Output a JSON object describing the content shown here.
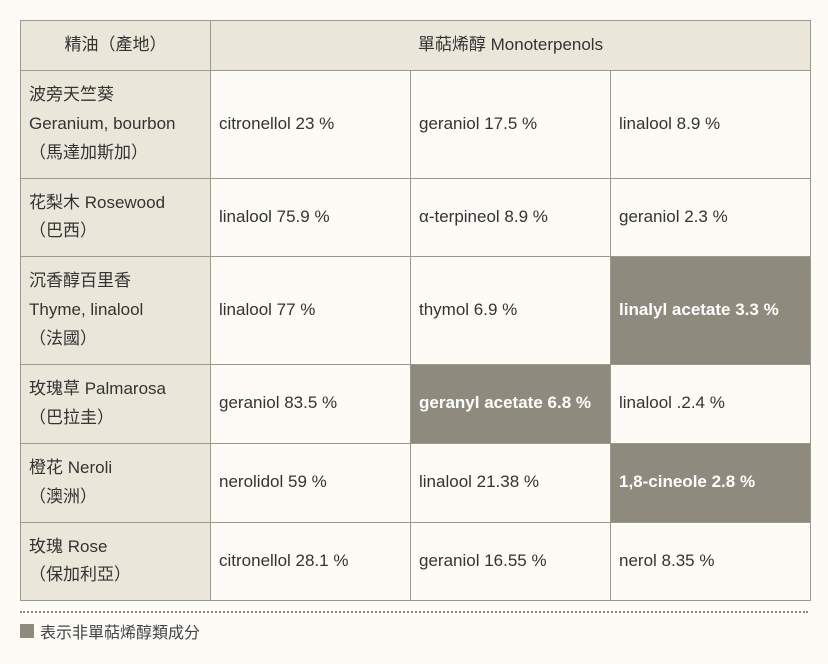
{
  "header": {
    "left": "精油（產地）",
    "main": "單萜烯醇 Monoterpenols"
  },
  "rows": [
    {
      "name": "波旁天竺葵\nGeranium, bourbon\n（馬達加斯加）",
      "c1": {
        "text": "citronellol 23 %",
        "dark": false
      },
      "c2": {
        "text": "geraniol 17.5 %",
        "dark": false
      },
      "c3": {
        "text": "linalool 8.9 %",
        "dark": false
      }
    },
    {
      "name": "花梨木 Rosewood\n（巴西）",
      "c1": {
        "text": "linalool 75.9 %",
        "dark": false
      },
      "c2": {
        "text": "α-terpineol 8.9 %",
        "dark": false
      },
      "c3": {
        "text": "geraniol 2.3 %",
        "dark": false
      }
    },
    {
      "name": "沉香醇百里香\nThyme, linalool\n（法國）",
      "c1": {
        "text": "linalool 77 %",
        "dark": false
      },
      "c2": {
        "text": "thymol 6.9 %",
        "dark": false
      },
      "c3": {
        "text": "linalyl acetate 3.3 %",
        "dark": true
      }
    },
    {
      "name": "玫瑰草 Palmarosa\n（巴拉圭）",
      "c1": {
        "text": "geraniol 83.5 %",
        "dark": false
      },
      "c2": {
        "text": "geranyl acetate 6.8 %",
        "dark": true
      },
      "c3": {
        "text": "linalool .2.4 %",
        "dark": false
      }
    },
    {
      "name": "橙花 Neroli\n（澳洲）",
      "c1": {
        "text": "nerolidol 59 %",
        "dark": false
      },
      "c2": {
        "text": "linalool 21.38 %",
        "dark": false
      },
      "c3": {
        "text": "1,8-cineole 2.8 %",
        "dark": true
      }
    },
    {
      "name": "玫瑰 Rose\n（保加利亞）",
      "c1": {
        "text": "citronellol 28.1 %",
        "dark": false
      },
      "c2": {
        "text": "geraniol 16.55 %",
        "dark": false
      },
      "c3": {
        "text": "nerol 8.35 %",
        "dark": false
      }
    }
  ],
  "footnote": "表示非單萜烯醇類成分",
  "colors": {
    "header_bg": "#eae7da",
    "dark_bg": "#8e8a7d",
    "dark_text": "#ffffff",
    "border": "#9a9a8f",
    "page_bg": "#fcfbf6"
  }
}
